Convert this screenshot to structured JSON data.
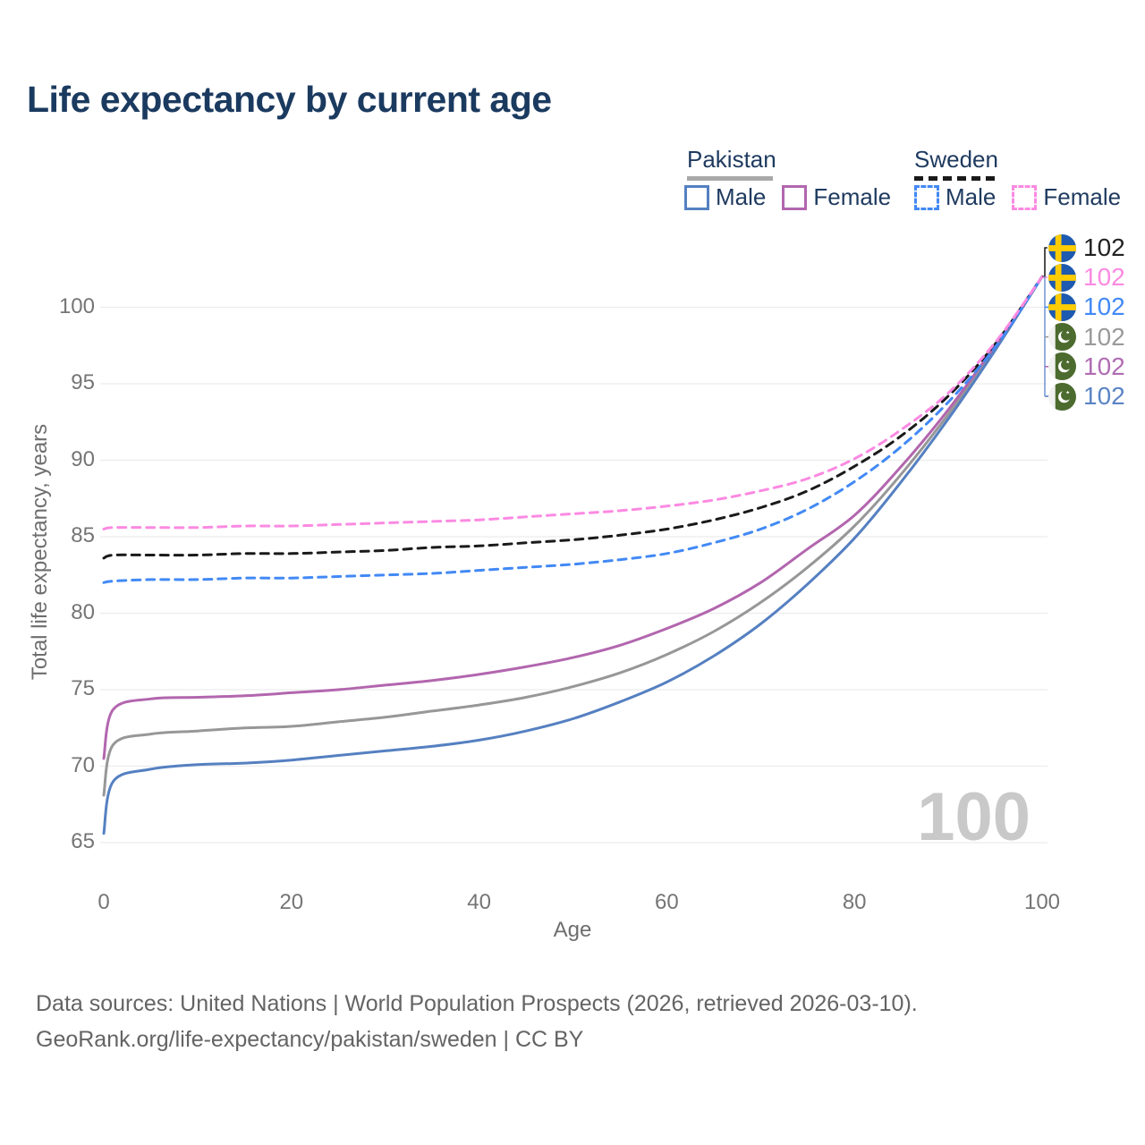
{
  "title": "Life expectancy by current age",
  "y_axis_title": "Total life expectancy, years",
  "x_axis_title": "Age",
  "watermark": "100",
  "legend": {
    "groups": [
      {
        "label": "Pakistan",
        "line_style": "solid",
        "underline_color": "#a8a8a8",
        "items": [
          {
            "label": "Male",
            "color": "#5580c1",
            "dashed": false
          },
          {
            "label": "Female",
            "color": "#b266ae",
            "dashed": false
          }
        ]
      },
      {
        "label": "Sweden",
        "line_style": "dashed",
        "underline_color": "#1a1a1a",
        "items": [
          {
            "label": "Male",
            "color": "#4289f5",
            "dashed": true
          },
          {
            "label": "Female",
            "color": "#fb8ae2",
            "dashed": true
          }
        ]
      }
    ]
  },
  "end_labels": [
    {
      "flag": "sweden",
      "series": "Sweden both sexes",
      "value": "102",
      "color": "#222222"
    },
    {
      "flag": "sweden",
      "series": "Sweden Female",
      "value": "102",
      "color": "#fb8ae2"
    },
    {
      "flag": "sweden",
      "series": "Sweden Male",
      "value": "102",
      "color": "#4289f5"
    },
    {
      "flag": "pakistan",
      "series": "Pakistan both sexes",
      "value": "102",
      "color": "#9a9a9a"
    },
    {
      "flag": "pakistan",
      "series": "Pakistan Female",
      "value": "102",
      "color": "#b06cb3"
    },
    {
      "flag": "pakistan",
      "series": "Pakistan Male",
      "value": "102",
      "color": "#5b84c4"
    }
  ],
  "chart_data": {
    "type": "line",
    "title": "Life expectancy by current age",
    "xlabel": "Age",
    "ylabel": "Total life expectancy, years",
    "grid": "horizontal-only",
    "legend_position": "top-right",
    "xlim": [
      0,
      100
    ],
    "ylim": [
      63.5,
      103
    ],
    "x_ticks": [
      0,
      20,
      40,
      60,
      80,
      100
    ],
    "y_ticks": [
      65,
      70,
      75,
      80,
      85,
      90,
      95,
      100
    ],
    "x": [
      0,
      1,
      5,
      10,
      15,
      20,
      25,
      30,
      35,
      40,
      45,
      50,
      55,
      60,
      65,
      70,
      75,
      80,
      85,
      90,
      95,
      100
    ],
    "series": [
      {
        "name": "Pakistan both sexes",
        "country": "Pakistan",
        "sex": "both",
        "color": "#979797",
        "dashed": false,
        "values": [
          68.1,
          71.4,
          72.1,
          72.3,
          72.5,
          72.6,
          72.9,
          73.2,
          73.6,
          74.0,
          74.5,
          75.2,
          76.1,
          77.3,
          78.8,
          80.7,
          83.0,
          85.7,
          89.1,
          93.0,
          97.3,
          102
        ]
      },
      {
        "name": "Pakistan Male",
        "country": "Pakistan",
        "sex": "male",
        "color": "#5580c1",
        "dashed": false,
        "values": [
          65.6,
          69.0,
          69.8,
          70.1,
          70.2,
          70.4,
          70.7,
          71.0,
          71.3,
          71.7,
          72.3,
          73.1,
          74.2,
          75.5,
          77.2,
          79.3,
          81.9,
          84.9,
          88.6,
          92.7,
          97.2,
          102
        ]
      },
      {
        "name": "Pakistan Female",
        "country": "Pakistan",
        "sex": "female",
        "color": "#b266ae",
        "dashed": false,
        "values": [
          70.5,
          73.7,
          74.4,
          74.5,
          74.6,
          74.8,
          75.0,
          75.3,
          75.6,
          76.0,
          76.5,
          77.1,
          77.9,
          79.0,
          80.3,
          82.0,
          84.2,
          86.4,
          89.6,
          93.3,
          97.5,
          102
        ]
      },
      {
        "name": "Sweden both sexes",
        "country": "Sweden",
        "sex": "both",
        "color": "#1a1a1a",
        "dashed": true,
        "values": [
          83.6,
          83.8,
          83.8,
          83.8,
          83.9,
          83.9,
          84.0,
          84.1,
          84.3,
          84.4,
          84.6,
          84.8,
          85.1,
          85.5,
          86.1,
          86.9,
          88.0,
          89.6,
          91.6,
          94.2,
          97.6,
          102
        ]
      },
      {
        "name": "Sweden Male",
        "country": "Sweden",
        "sex": "male",
        "color": "#4289f5",
        "dashed": true,
        "values": [
          82.0,
          82.1,
          82.2,
          82.2,
          82.3,
          82.3,
          82.4,
          82.5,
          82.6,
          82.8,
          83.0,
          83.2,
          83.5,
          83.9,
          84.6,
          85.5,
          86.8,
          88.6,
          90.9,
          93.8,
          97.4,
          102
        ]
      },
      {
        "name": "Sweden Female",
        "country": "Sweden",
        "sex": "female",
        "color": "#fb8ae2",
        "dashed": true,
        "values": [
          85.5,
          85.6,
          85.6,
          85.6,
          85.7,
          85.7,
          85.8,
          85.9,
          86.0,
          86.1,
          86.3,
          86.5,
          86.7,
          87.0,
          87.4,
          88.0,
          88.8,
          90.1,
          92.0,
          94.4,
          97.7,
          102
        ]
      }
    ],
    "end_value_all_series": 102
  },
  "footer": {
    "line1": "Data sources: United Nations | World Population Prospects (2026, retrieved 2026-03-10).",
    "line2": "GeoRank.org/life-expectancy/pakistan/sweden | CC BY"
  }
}
